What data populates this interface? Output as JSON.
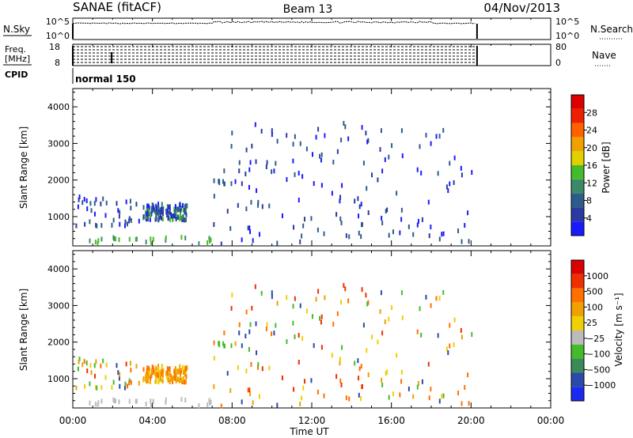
{
  "header": {
    "station": "SANAE (fitACF)",
    "beam": "Beam 13",
    "date": "04/Nov/2013"
  },
  "panels": {
    "nsky": {
      "label": "N.Sky",
      "tick_top": "10^5",
      "tick_bottom": "10^0",
      "right_tick_top": "10^5",
      "right_tick_bottom": "10^0",
      "right_label": "N.Search"
    },
    "freq": {
      "label_line1": "Freq.",
      "label_line2": "[MHz]",
      "tick_top": "18",
      "tick_bottom": "8",
      "right_tick_top": "80",
      "right_tick_bottom": "0",
      "right_label": "Nave"
    },
    "cpid": {
      "label": "CPID",
      "value": "normal 150"
    }
  },
  "chart_data": [
    {
      "type": "scatter",
      "name": "power",
      "ylabel": "Slant Range [km]",
      "xlabel": "",
      "xlim": [
        0,
        24
      ],
      "ylim": [
        200,
        4500
      ],
      "yticks": [
        1000,
        2000,
        3000,
        4000
      ],
      "colorbar": {
        "label": "Power [dB]",
        "ticks": [
          "4",
          "8",
          "12",
          "16",
          "20",
          "24",
          "28"
        ],
        "colors": [
          "#1a1aff",
          "#2a3aa0",
          "#2e5c8a",
          "#3a8a6a",
          "#44bb2a",
          "#e0d000",
          "#f0a000",
          "#ff6000",
          "#ee2000",
          "#dd0000"
        ]
      }
    },
    {
      "type": "scatter",
      "name": "velocity",
      "ylabel": "Slant Range [km]",
      "xlabel": "Time UT",
      "xlim": [
        0,
        24
      ],
      "ylim": [
        200,
        4500
      ],
      "yticks": [
        1000,
        2000,
        3000,
        4000
      ],
      "xticks": [
        "00:00",
        "04:00",
        "08:00",
        "12:00",
        "16:00",
        "20:00",
        "00:00"
      ],
      "colorbar": {
        "label": "Velocity [m s⁻¹]",
        "ticks": [
          "1000",
          "500",
          "100",
          "25",
          "−25",
          "−100",
          "−500",
          "−1000"
        ],
        "colors": [
          "#1a2aee",
          "#2a4aaa",
          "#3a8a5a",
          "#44bb2a",
          "#bbbbbb",
          "#f0d000",
          "#f0a000",
          "#ff7000",
          "#ee3000",
          "#dd0000"
        ]
      }
    }
  ]
}
